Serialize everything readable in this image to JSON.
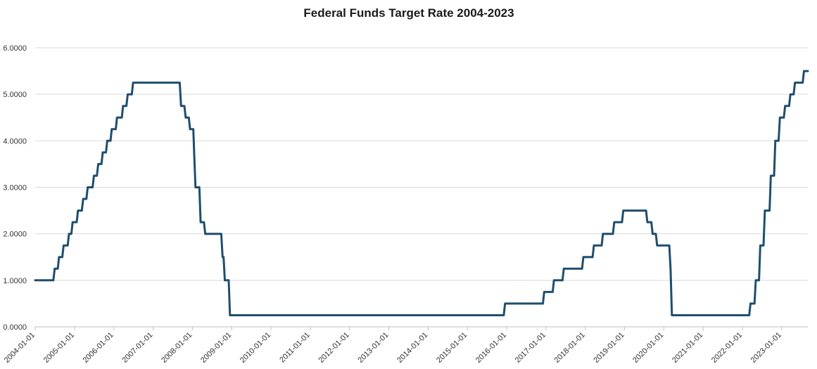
{
  "chart_data": {
    "type": "line",
    "title": "Federal Funds Target Rate 2004-2023",
    "xlabel": "",
    "ylabel": "",
    "ylim": [
      0,
      6
    ],
    "xlim": [
      "2004-01-01",
      "2023-09-01"
    ],
    "grid": true,
    "legend": "none",
    "y_ticks": [
      0,
      1,
      2,
      3,
      4,
      5,
      6
    ],
    "y_tick_labels": [
      "0.0000",
      "1.0000",
      "2.0000",
      "3.0000",
      "4.0000",
      "5.0000",
      "6.0000"
    ],
    "x_tick_labels": [
      "2004-01-01",
      "2005-01-01",
      "2006-01-01",
      "2007-01-01",
      "2008-01-01",
      "2009-01-01",
      "2010-01-01",
      "2011-01-01",
      "2012-01-01",
      "2013-01-01",
      "2014-01-01",
      "2015-01-01",
      "2016-01-01",
      "2017-01-01",
      "2018-01-01",
      "2019-01-01",
      "2020-01-01",
      "2021-01-01",
      "2022-01-01",
      "2023-01-01"
    ],
    "series": [
      {
        "color": "#1f4e6e",
        "points": [
          [
            "2004-01-01",
            1.0
          ],
          [
            "2004-06-30",
            1.25
          ],
          [
            "2004-08-10",
            1.5
          ],
          [
            "2004-09-21",
            1.75
          ],
          [
            "2004-11-10",
            2.0
          ],
          [
            "2004-12-14",
            2.25
          ],
          [
            "2005-02-02",
            2.5
          ],
          [
            "2005-03-22",
            2.75
          ],
          [
            "2005-05-03",
            3.0
          ],
          [
            "2005-06-30",
            3.25
          ],
          [
            "2005-08-09",
            3.5
          ],
          [
            "2005-09-20",
            3.75
          ],
          [
            "2005-11-01",
            4.0
          ],
          [
            "2005-12-13",
            4.25
          ],
          [
            "2006-01-31",
            4.5
          ],
          [
            "2006-03-28",
            4.75
          ],
          [
            "2006-05-10",
            5.0
          ],
          [
            "2006-06-29",
            5.25
          ],
          [
            "2007-09-18",
            4.75
          ],
          [
            "2007-10-31",
            4.5
          ],
          [
            "2007-12-11",
            4.25
          ],
          [
            "2008-01-22",
            3.5
          ],
          [
            "2008-01-30",
            3.0
          ],
          [
            "2008-03-18",
            2.25
          ],
          [
            "2008-04-30",
            2.0
          ],
          [
            "2008-10-08",
            1.5
          ],
          [
            "2008-10-29",
            1.0
          ],
          [
            "2008-12-16",
            0.25
          ],
          [
            "2015-12-17",
            0.5
          ],
          [
            "2016-12-15",
            0.75
          ],
          [
            "2017-03-16",
            1.0
          ],
          [
            "2017-06-15",
            1.25
          ],
          [
            "2017-12-14",
            1.5
          ],
          [
            "2018-03-22",
            1.75
          ],
          [
            "2018-06-14",
            2.0
          ],
          [
            "2018-09-27",
            2.25
          ],
          [
            "2018-12-20",
            2.5
          ],
          [
            "2019-08-01",
            2.25
          ],
          [
            "2019-09-19",
            2.0
          ],
          [
            "2019-10-31",
            1.75
          ],
          [
            "2020-03-04",
            1.25
          ],
          [
            "2020-03-16",
            0.25
          ],
          [
            "2022-03-17",
            0.5
          ],
          [
            "2022-05-05",
            1.0
          ],
          [
            "2022-06-16",
            1.75
          ],
          [
            "2022-07-28",
            2.5
          ],
          [
            "2022-09-22",
            3.25
          ],
          [
            "2022-11-03",
            4.0
          ],
          [
            "2022-12-15",
            4.5
          ],
          [
            "2023-02-02",
            4.75
          ],
          [
            "2023-03-23",
            5.0
          ],
          [
            "2023-05-04",
            5.25
          ],
          [
            "2023-07-27",
            5.5
          ],
          [
            "2023-09-01",
            5.5
          ]
        ]
      }
    ]
  }
}
